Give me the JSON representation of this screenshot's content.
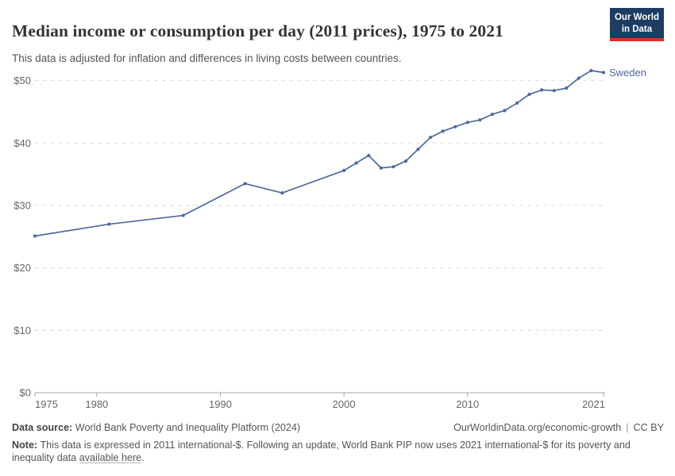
{
  "header": {
    "title": "Median income or consumption per day (2011 prices), 1975 to 2021",
    "subtitle": "This data is adjusted for inflation and differences in living costs between countries.",
    "logo": {
      "line1": "Our World",
      "line2": "in Data"
    }
  },
  "chart_data": {
    "type": "line",
    "title": "Median income or consumption per day (2011 prices), 1975 to 2021",
    "xlabel": "",
    "ylabel": "",
    "xlim": [
      1975,
      2021
    ],
    "ylim": [
      0,
      50
    ],
    "x_ticks": [
      1975,
      1980,
      1990,
      2000,
      2010,
      2021
    ],
    "y_ticks": [
      0,
      10,
      20,
      30,
      40,
      50
    ],
    "y_tick_prefix": "$",
    "grid": "dashed-horizontal",
    "legend_position": "end-of-line-label",
    "series": [
      {
        "name": "Sweden",
        "color": "#4c6a9c",
        "points": [
          [
            1975,
            25.1
          ],
          [
            1981,
            27.0
          ],
          [
            1987,
            28.4
          ],
          [
            1992,
            33.5
          ],
          [
            1995,
            32.0
          ],
          [
            2000,
            35.6
          ],
          [
            2001,
            36.8
          ],
          [
            2002,
            38.0
          ],
          [
            2003,
            36.0
          ],
          [
            2004,
            36.2
          ],
          [
            2005,
            37.1
          ],
          [
            2006,
            39.0
          ],
          [
            2007,
            40.9
          ],
          [
            2008,
            41.9
          ],
          [
            2009,
            42.6
          ],
          [
            2010,
            43.3
          ],
          [
            2011,
            43.7
          ],
          [
            2012,
            44.6
          ],
          [
            2013,
            45.2
          ],
          [
            2014,
            46.4
          ],
          [
            2015,
            47.8
          ],
          [
            2016,
            48.5
          ],
          [
            2017,
            48.4
          ],
          [
            2018,
            48.8
          ],
          [
            2019,
            50.4
          ],
          [
            2020,
            51.6
          ],
          [
            2021,
            51.3
          ]
        ]
      }
    ]
  },
  "footer": {
    "datasource_label": "Data source:",
    "datasource_text": "World Bank Poverty and Inequality Platform (2024)",
    "origin_url": "OurWorldinData.org/economic-growth",
    "separator": "|",
    "license": "CC BY",
    "note_label": "Note:",
    "note_text": "This data is expressed in 2011 international-$. Following an update, World Bank PIP now uses 2021 international-$ for its poverty and inequality data",
    "note_link": "available here",
    "note_suffix": "."
  },
  "colors": {
    "accent_line": "#4c6a9c",
    "logo_background": "#1d3d63",
    "logo_stripe": "#e0301f",
    "grid": "#dddddd",
    "axis": "#a5a5a5",
    "axis_label": "#666666",
    "title_text": "#333333",
    "subtitle_text": "#555555",
    "footer_text": "#555555"
  }
}
